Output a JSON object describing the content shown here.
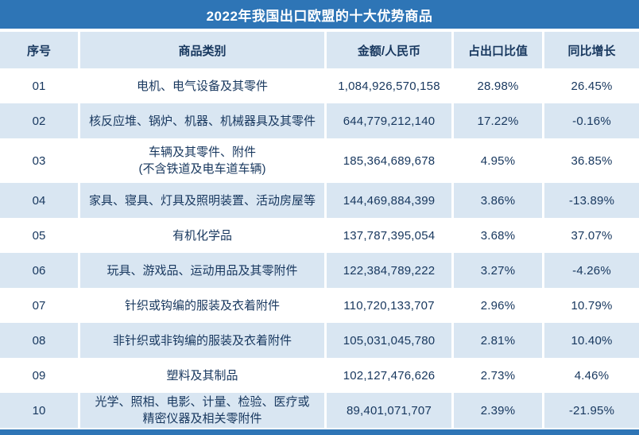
{
  "colors": {
    "banner_blue": "#2E75B6",
    "row_light_blue": "#D9E6F2",
    "row_white": "#FFFFFF",
    "text_color": "#17375E",
    "title_text": "#FFFFFF",
    "separator": "#FFFFFF"
  },
  "chart_data": {
    "type": "table",
    "title": "2022年我国出口欧盟的十大优势商品",
    "columns": [
      "序号",
      "商品类别",
      "金额/人民币",
      "占出口比值",
      "同比增长"
    ],
    "rows": [
      {
        "no": "01",
        "category": "电机、电气设备及其零件",
        "amount": "1,084,926,570,158",
        "share": "28.98%",
        "yoy": "26.45%"
      },
      {
        "no": "02",
        "category": "核反应堆、锅炉、机器、机械器具及其零件",
        "amount": "644,779,212,140",
        "share": "17.22%",
        "yoy": "-0.16%"
      },
      {
        "no": "03",
        "category": "车辆及其零件、附件\n(不含铁道及电车道车辆)",
        "amount": "185,364,689,678",
        "share": "4.95%",
        "yoy": "36.85%"
      },
      {
        "no": "04",
        "category": "家具、寝具、灯具及照明装置、活动房屋等",
        "amount": "144,469,884,399",
        "share": "3.86%",
        "yoy": "-13.89%"
      },
      {
        "no": "05",
        "category": "有机化学品",
        "amount": "137,787,395,054",
        "share": "3.68%",
        "yoy": "37.07%"
      },
      {
        "no": "06",
        "category": "玩具、游戏品、运动用品及其零附件",
        "amount": "122,384,789,222",
        "share": "3.27%",
        "yoy": "-4.26%"
      },
      {
        "no": "07",
        "category": "针织或钩编的服装及衣着附件",
        "amount": "110,720,133,707",
        "share": "2.96%",
        "yoy": "10.79%"
      },
      {
        "no": "08",
        "category": "非针织或非钩编的服装及衣着附件",
        "amount": "105,031,045,780",
        "share": "2.81%",
        "yoy": "10.40%"
      },
      {
        "no": "09",
        "category": "塑料及其制品",
        "amount": "102,127,476,626",
        "share": "2.73%",
        "yoy": "4.46%"
      },
      {
        "no": "10",
        "category": "光学、照相、电影、计量、检验、医疗或\n精密仪器及相关零附件",
        "amount": "89,401,071,707",
        "share": "2.39%",
        "yoy": "-21.95%"
      }
    ]
  }
}
